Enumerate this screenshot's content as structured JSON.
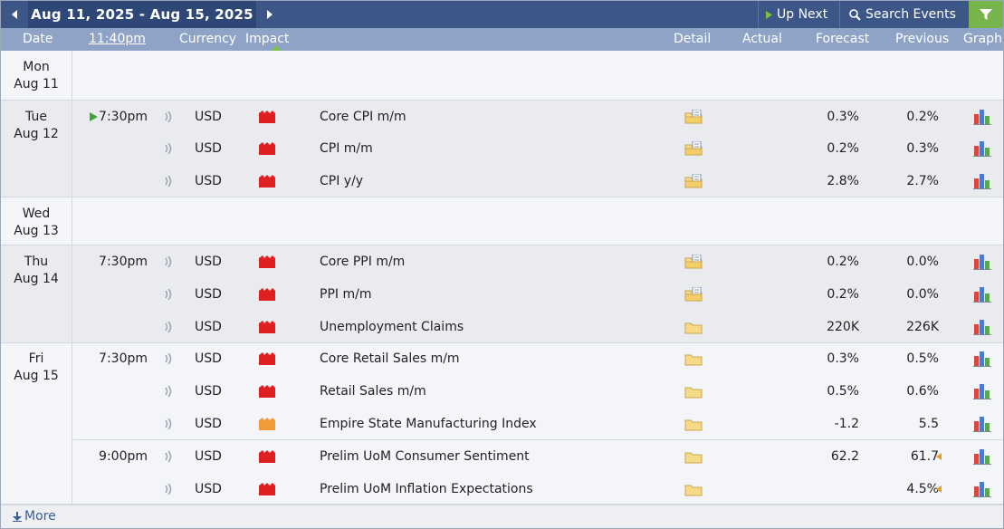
{
  "toolbar": {
    "date_range": "Aug 11, 2025 - Aug 15, 2025",
    "up_next_label": "Up Next",
    "search_label": "Search Events",
    "accent_green": "#78b44c",
    "bar_color": "#3c5688"
  },
  "columns": {
    "date": "Date",
    "time": "11:40pm",
    "currency": "Currency",
    "impact": "Impact",
    "detail": "Detail",
    "actual": "Actual",
    "forecast": "Forecast",
    "previous": "Previous",
    "graph": "Graph"
  },
  "days": [
    {
      "weekday": "Mon",
      "date": "Aug 11"
    },
    {
      "weekday": "Tue",
      "date": "Aug 12"
    },
    {
      "weekday": "Wed",
      "date": "Aug 13"
    },
    {
      "weekday": "Thu",
      "date": "Aug 14"
    },
    {
      "weekday": "Fri",
      "date": "Aug 15"
    }
  ],
  "events": [
    {
      "time": "7:30pm",
      "currency": "USD",
      "impact": "high",
      "title": "Core CPI m/m",
      "actual": "",
      "forecast": "0.3%",
      "previous": "0.2%",
      "detail_icon": "folder-doc-icon"
    },
    {
      "time": "",
      "currency": "USD",
      "impact": "high",
      "title": "CPI m/m",
      "actual": "",
      "forecast": "0.2%",
      "previous": "0.3%",
      "detail_icon": "folder-doc-icon"
    },
    {
      "time": "",
      "currency": "USD",
      "impact": "high",
      "title": "CPI y/y",
      "actual": "",
      "forecast": "2.8%",
      "previous": "2.7%",
      "detail_icon": "folder-doc-icon"
    },
    {
      "time": "7:30pm",
      "currency": "USD",
      "impact": "high",
      "title": "Core PPI m/m",
      "actual": "",
      "forecast": "0.2%",
      "previous": "0.0%",
      "detail_icon": "folder-doc-icon"
    },
    {
      "time": "",
      "currency": "USD",
      "impact": "high",
      "title": "PPI m/m",
      "actual": "",
      "forecast": "0.2%",
      "previous": "0.0%",
      "detail_icon": "folder-doc-icon"
    },
    {
      "time": "",
      "currency": "USD",
      "impact": "high",
      "title": "Unemployment Claims",
      "actual": "",
      "forecast": "220K",
      "previous": "226K",
      "detail_icon": "folder-icon"
    },
    {
      "time": "7:30pm",
      "currency": "USD",
      "impact": "high",
      "title": "Core Retail Sales m/m",
      "actual": "",
      "forecast": "0.3%",
      "previous": "0.5%",
      "detail_icon": "folder-icon"
    },
    {
      "time": "",
      "currency": "USD",
      "impact": "high",
      "title": "Retail Sales m/m",
      "actual": "",
      "forecast": "0.5%",
      "previous": "0.6%",
      "detail_icon": "folder-icon"
    },
    {
      "time": "",
      "currency": "USD",
      "impact": "medium",
      "title": "Empire State Manufacturing Index",
      "actual": "",
      "forecast": "-1.2",
      "previous": "5.5",
      "detail_icon": "folder-icon"
    },
    {
      "time": "9:00pm",
      "currency": "USD",
      "impact": "high",
      "title": "Prelim UoM Consumer Sentiment",
      "actual": "",
      "forecast": "62.2",
      "previous": "61.7",
      "previous_revised": true,
      "detail_icon": "folder-icon"
    },
    {
      "time": "",
      "currency": "USD",
      "impact": "high",
      "title": "Prelim UoM Inflation Expectations",
      "actual": "",
      "forecast": "",
      "previous": "4.5%",
      "previous_revised": true,
      "detail_icon": "folder-icon"
    }
  ],
  "impact_colors": {
    "high": "#e02020",
    "medium": "#f09a3a"
  },
  "more_label": "More"
}
